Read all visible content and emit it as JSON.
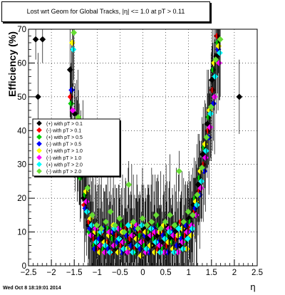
{
  "chart_data": {
    "type": "scatter",
    "title": "Lost wrt Geom for Global Tracks, |η| <= 1.0 at pT > 0.11",
    "xlabel": "η",
    "ylabel": "Efficiency (%)",
    "xlim": [
      -2.5,
      2.5
    ],
    "ylim": [
      0,
      70
    ],
    "x_ticks": [
      "−2.5",
      "−2",
      "−1.5",
      "−1",
      "−0.5",
      "0",
      "0.5",
      "1",
      "1.5",
      "2",
      "2.5"
    ],
    "y_ticks": [
      "0",
      "10",
      "20",
      "30",
      "40",
      "50",
      "60",
      "70"
    ],
    "grid": true,
    "legend_position": "left-middle",
    "series": [
      {
        "name": "(+) with pT > 0.1",
        "color": "#000000",
        "points": [
          [
            -2.3,
            67
          ],
          [
            -2.25,
            50
          ],
          [
            -2.15,
            67
          ],
          [
            -1.55,
            58
          ],
          [
            -1.45,
            45
          ],
          [
            -1.35,
            33
          ],
          [
            -1.25,
            20
          ],
          [
            -1.15,
            12
          ],
          [
            -1.05,
            9
          ],
          [
            -0.95,
            7
          ],
          [
            -0.85,
            8
          ],
          [
            -0.75,
            6
          ],
          [
            -0.65,
            9
          ],
          [
            -0.55,
            5
          ],
          [
            -0.45,
            8
          ],
          [
            -0.35,
            10
          ],
          [
            -0.25,
            7
          ],
          [
            -0.15,
            9
          ],
          [
            -0.05,
            6
          ],
          [
            0.05,
            11
          ],
          [
            0.15,
            8
          ],
          [
            0.25,
            6
          ],
          [
            0.35,
            9
          ],
          [
            0.45,
            7
          ],
          [
            0.55,
            12
          ],
          [
            0.65,
            8
          ],
          [
            0.75,
            10
          ],
          [
            0.85,
            6
          ],
          [
            0.95,
            11
          ],
          [
            1.05,
            14
          ],
          [
            1.15,
            18
          ],
          [
            1.25,
            24
          ],
          [
            1.35,
            33
          ],
          [
            1.45,
            42
          ],
          [
            1.55,
            55
          ],
          [
            1.65,
            62
          ],
          [
            2.15,
            50
          ]
        ]
      },
      {
        "name": "(-) with pT > 0.1",
        "color": "#ff0000",
        "points": [
          [
            -1.55,
            50
          ],
          [
            -1.45,
            38
          ],
          [
            -1.35,
            28
          ],
          [
            -1.25,
            18
          ],
          [
            -1.15,
            13
          ],
          [
            -1.05,
            8
          ],
          [
            -0.95,
            5
          ],
          [
            -0.85,
            10
          ],
          [
            -0.75,
            7
          ],
          [
            -0.65,
            4
          ],
          [
            -0.55,
            9
          ],
          [
            -0.45,
            6
          ],
          [
            -0.35,
            11
          ],
          [
            -0.25,
            8
          ],
          [
            -0.15,
            5
          ],
          [
            -0.05,
            10
          ],
          [
            0.05,
            7
          ],
          [
            0.15,
            12
          ],
          [
            0.25,
            9
          ],
          [
            0.35,
            5
          ],
          [
            0.45,
            10
          ],
          [
            0.55,
            6
          ],
          [
            0.65,
            11
          ],
          [
            0.75,
            8
          ],
          [
            0.85,
            13
          ],
          [
            0.95,
            9
          ],
          [
            1.05,
            11
          ],
          [
            1.15,
            16
          ],
          [
            1.25,
            22
          ],
          [
            1.35,
            30
          ],
          [
            1.45,
            40
          ],
          [
            1.55,
            52
          ],
          [
            1.65,
            68
          ]
        ]
      },
      {
        "name": "(+) with pT > 0.5",
        "color": "#00cc00",
        "points": [
          [
            -1.55,
            48
          ],
          [
            -1.45,
            36
          ],
          [
            -1.35,
            26
          ],
          [
            -1.25,
            21
          ],
          [
            -1.15,
            10
          ],
          [
            -1.05,
            6
          ],
          [
            -0.95,
            9
          ],
          [
            -0.85,
            5
          ],
          [
            -0.75,
            11
          ],
          [
            -0.65,
            8
          ],
          [
            -0.55,
            6
          ],
          [
            -0.45,
            12
          ],
          [
            -0.35,
            7
          ],
          [
            -0.25,
            10
          ],
          [
            -0.15,
            4
          ],
          [
            -0.05,
            9
          ],
          [
            0.05,
            6
          ],
          [
            0.15,
            10
          ],
          [
            0.25,
            8
          ],
          [
            0.35,
            12
          ],
          [
            0.45,
            5
          ],
          [
            0.55,
            9
          ],
          [
            0.65,
            7
          ],
          [
            0.75,
            12
          ],
          [
            0.85,
            9
          ],
          [
            0.95,
            7
          ],
          [
            1.05,
            13
          ],
          [
            1.15,
            20
          ],
          [
            1.25,
            26
          ],
          [
            1.35,
            35
          ],
          [
            1.45,
            44
          ],
          [
            1.55,
            58
          ],
          [
            1.65,
            66
          ]
        ]
      },
      {
        "name": "(-) with pT > 0.5",
        "color": "#0000ff",
        "points": [
          [
            -1.55,
            52
          ],
          [
            -1.45,
            41
          ],
          [
            -1.35,
            30
          ],
          [
            -1.25,
            17
          ],
          [
            -1.15,
            11
          ],
          [
            -1.05,
            5
          ],
          [
            -0.95,
            8
          ],
          [
            -0.85,
            11
          ],
          [
            -0.75,
            5
          ],
          [
            -0.65,
            10
          ],
          [
            -0.55,
            7
          ],
          [
            -0.45,
            4
          ],
          [
            -0.35,
            9
          ],
          [
            -0.25,
            6
          ],
          [
            -0.15,
            11
          ],
          [
            -0.05,
            5
          ],
          [
            0.05,
            9
          ],
          [
            0.15,
            4
          ],
          [
            0.25,
            11
          ],
          [
            0.35,
            7
          ],
          [
            0.45,
            9
          ],
          [
            0.55,
            4
          ],
          [
            0.65,
            10
          ],
          [
            0.75,
            6
          ],
          [
            0.85,
            8
          ],
          [
            0.95,
            12
          ],
          [
            1.05,
            10
          ],
          [
            1.15,
            17
          ],
          [
            1.25,
            21
          ],
          [
            1.35,
            28
          ],
          [
            1.45,
            38
          ],
          [
            1.55,
            48
          ],
          [
            1.65,
            64
          ]
        ]
      },
      {
        "name": "(+) with pT > 1.0",
        "color": "#ffff00",
        "points": [
          [
            -1.55,
            66
          ],
          [
            -1.45,
            43
          ],
          [
            -1.35,
            32
          ],
          [
            -1.25,
            22
          ],
          [
            -1.15,
            14
          ],
          [
            -1.05,
            10
          ],
          [
            -0.95,
            4
          ],
          [
            -0.85,
            7
          ],
          [
            -0.75,
            9
          ],
          [
            -0.65,
            12
          ],
          [
            -0.55,
            4
          ],
          [
            -0.45,
            10
          ],
          [
            -0.35,
            5
          ],
          [
            -0.25,
            12
          ],
          [
            -0.15,
            8
          ],
          [
            -0.05,
            3
          ],
          [
            0.05,
            10
          ],
          [
            0.15,
            6
          ],
          [
            0.25,
            4
          ],
          [
            0.35,
            10
          ],
          [
            0.45,
            12
          ],
          [
            0.55,
            7
          ],
          [
            0.65,
            5
          ],
          [
            0.75,
            9
          ],
          [
            0.85,
            11
          ],
          [
            0.95,
            5
          ],
          [
            1.05,
            9
          ],
          [
            1.15,
            19
          ],
          [
            1.25,
            28
          ],
          [
            1.35,
            36
          ],
          [
            1.45,
            46
          ],
          [
            1.55,
            60
          ],
          [
            1.65,
            65
          ]
        ]
      },
      {
        "name": "(-) with pT > 1.0",
        "color": "#ff00ff",
        "points": [
          [
            -1.55,
            46
          ],
          [
            -1.45,
            34
          ],
          [
            -1.35,
            29
          ],
          [
            -1.25,
            19
          ],
          [
            -1.15,
            9
          ],
          [
            -1.05,
            11
          ],
          [
            -0.95,
            6
          ],
          [
            -0.85,
            4
          ],
          [
            -0.75,
            10
          ],
          [
            -0.65,
            6
          ],
          [
            -0.55,
            11
          ],
          [
            -0.45,
            7
          ],
          [
            -0.35,
            4
          ],
          [
            -0.25,
            9
          ],
          [
            -0.15,
            12
          ],
          [
            -0.05,
            7
          ],
          [
            0.05,
            4
          ],
          [
            0.15,
            9
          ],
          [
            0.25,
            10
          ],
          [
            0.35,
            6
          ],
          [
            0.45,
            4
          ],
          [
            0.55,
            11
          ],
          [
            0.65,
            9
          ],
          [
            0.75,
            4
          ],
          [
            0.85,
            7
          ],
          [
            0.95,
            10
          ],
          [
            1.05,
            12
          ],
          [
            1.15,
            15
          ],
          [
            1.25,
            23
          ],
          [
            1.35,
            32
          ],
          [
            1.45,
            41
          ],
          [
            1.55,
            50
          ],
          [
            1.65,
            60
          ]
        ]
      },
      {
        "name": "(+) with pT > 2.0",
        "color": "#00ffff",
        "points": [
          [
            -1.55,
            64
          ],
          [
            -1.45,
            40
          ],
          [
            -1.35,
            31
          ],
          [
            -1.25,
            16
          ],
          [
            -1.15,
            12
          ],
          [
            -1.05,
            7
          ],
          [
            -0.95,
            10
          ],
          [
            -0.85,
            6
          ],
          [
            -0.75,
            4
          ],
          [
            -0.65,
            11
          ],
          [
            -0.55,
            8
          ],
          [
            -0.45,
            5
          ],
          [
            -0.35,
            12
          ],
          [
            -0.25,
            4
          ],
          [
            -0.15,
            6
          ],
          [
            -0.05,
            12
          ],
          [
            0.05,
            5
          ],
          [
            0.15,
            11
          ],
          [
            0.25,
            7
          ],
          [
            0.35,
            4
          ],
          [
            0.45,
            8
          ],
          [
            0.55,
            10
          ],
          [
            0.65,
            4
          ],
          [
            0.75,
            11
          ],
          [
            0.85,
            5
          ],
          [
            0.95,
            8
          ],
          [
            1.05,
            11
          ],
          [
            1.15,
            18
          ],
          [
            1.25,
            25
          ],
          [
            1.35,
            34
          ],
          [
            1.45,
            45
          ],
          [
            1.55,
            56
          ],
          [
            1.65,
            63
          ]
        ]
      },
      {
        "name": "(-) with pT > 2.0",
        "color": "#66dd33",
        "points": [
          [
            -1.55,
            69
          ],
          [
            -1.45,
            44
          ],
          [
            -1.35,
            34
          ],
          [
            -1.25,
            23
          ],
          [
            -1.15,
            15
          ],
          [
            -1.05,
            12
          ],
          [
            -0.95,
            11
          ],
          [
            -0.85,
            13
          ],
          [
            -0.75,
            16
          ],
          [
            -0.65,
            12
          ],
          [
            -0.55,
            14
          ],
          [
            -0.45,
            10
          ],
          [
            -0.35,
            24
          ],
          [
            -0.25,
            13
          ],
          [
            -0.15,
            11
          ],
          [
            -0.05,
            14
          ],
          [
            0.05,
            12
          ],
          [
            0.15,
            13
          ],
          [
            0.25,
            15
          ],
          [
            0.35,
            11
          ],
          [
            0.45,
            13
          ],
          [
            0.55,
            15
          ],
          [
            0.65,
            12
          ],
          [
            0.75,
            28
          ],
          [
            0.85,
            13
          ],
          [
            0.95,
            16
          ],
          [
            1.05,
            15
          ],
          [
            1.15,
            21
          ],
          [
            1.25,
            29
          ],
          [
            1.35,
            38
          ],
          [
            1.45,
            47
          ],
          [
            1.55,
            61
          ],
          [
            1.65,
            67
          ]
        ]
      }
    ]
  },
  "footer": {
    "timestamp": "Wed Oct  8 18:19:01 2014"
  }
}
